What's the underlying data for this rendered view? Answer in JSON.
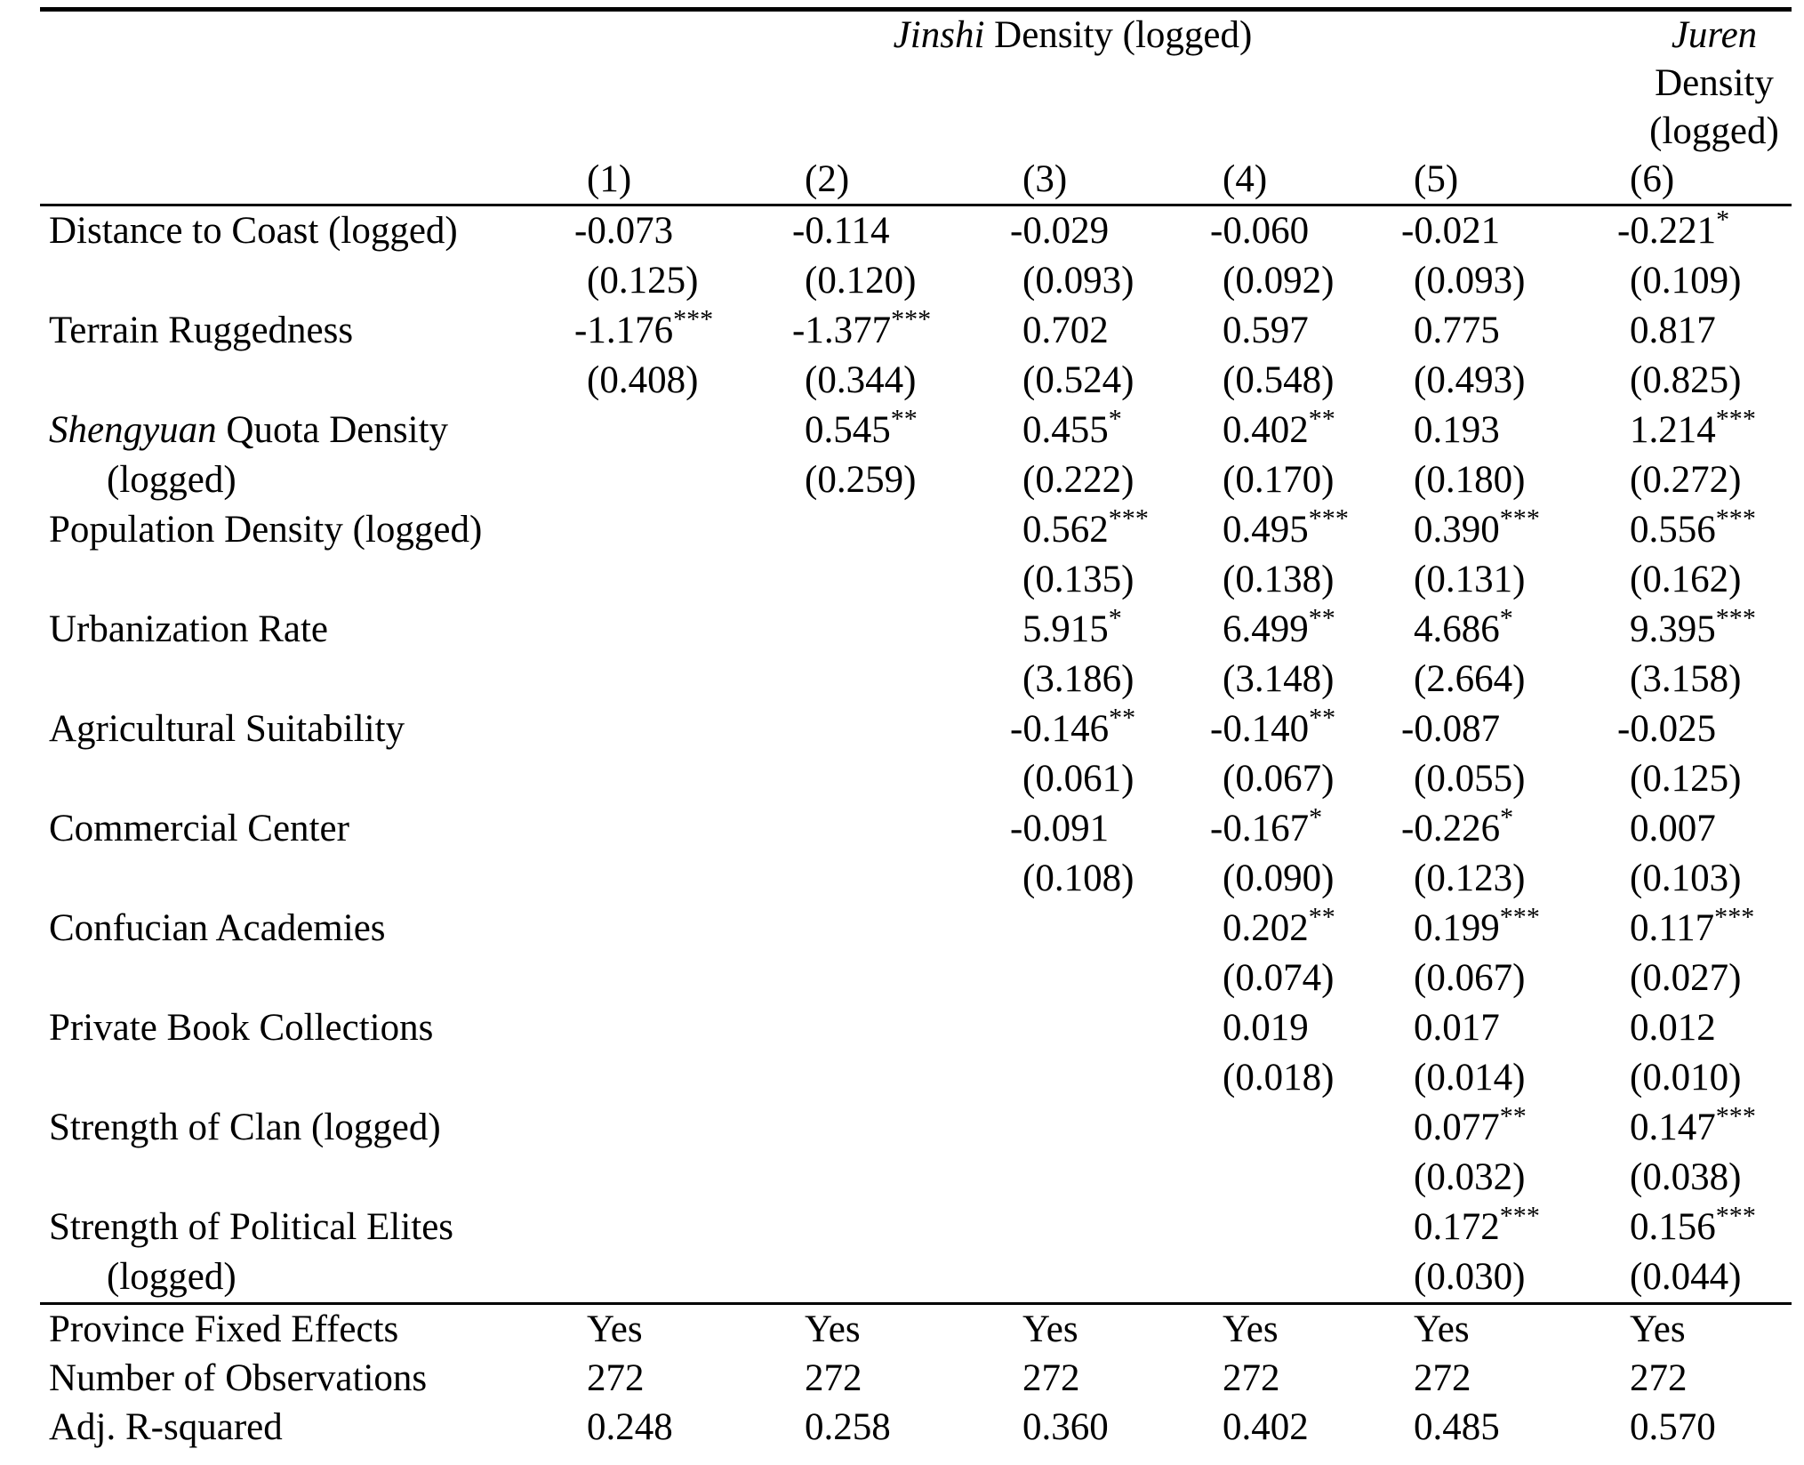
{
  "table": {
    "header": {
      "span_title_parts": [
        {
          "text": "Jinshi",
          "italic": true
        },
        {
          "text": " Density (logged)",
          "italic": false
        }
      ],
      "col6_title_lines": [
        {
          "text": "Juren",
          "italic": true
        },
        {
          "text": "Density",
          "italic": false
        },
        {
          "text": "(logged)",
          "italic": false
        }
      ],
      "column_numbers": [
        "(1)",
        "(2)",
        "(3)",
        "(4)",
        "(5)",
        "(6)"
      ]
    },
    "rows": [
      {
        "label_parts": [
          {
            "text": "Distance to Coast (logged)",
            "italic": false
          }
        ],
        "label2": "",
        "coefs": [
          "-0.073",
          "-0.114",
          "-0.029",
          "-0.060",
          "-0.021",
          "-0.221*"
        ],
        "ses": [
          "(0.125)",
          "(0.120)",
          "(0.093)",
          "(0.092)",
          "(0.093)",
          "(0.109)"
        ]
      },
      {
        "label_parts": [
          {
            "text": "Terrain Ruggedness",
            "italic": false
          }
        ],
        "label2": "",
        "coefs": [
          "-1.176***",
          "-1.377***",
          "0.702",
          "0.597",
          "0.775",
          "0.817"
        ],
        "ses": [
          "(0.408)",
          "(0.344)",
          "(0.524)",
          "(0.548)",
          "(0.493)",
          "(0.825)"
        ]
      },
      {
        "label_parts": [
          {
            "text": "Shengyuan",
            "italic": true
          },
          {
            "text": " Quota Density",
            "italic": false
          }
        ],
        "label2": "(logged)",
        "coefs": [
          "",
          "0.545**",
          "0.455*",
          "0.402**",
          "0.193",
          "1.214***"
        ],
        "ses": [
          "",
          "(0.259)",
          "(0.222)",
          "(0.170)",
          "(0.180)",
          "(0.272)"
        ]
      },
      {
        "label_parts": [
          {
            "text": "Population Density (logged)",
            "italic": false
          }
        ],
        "label2": "",
        "coefs": [
          "",
          "",
          "0.562***",
          "0.495***",
          "0.390***",
          "0.556***"
        ],
        "ses": [
          "",
          "",
          "(0.135)",
          "(0.138)",
          "(0.131)",
          "(0.162)"
        ]
      },
      {
        "label_parts": [
          {
            "text": "Urbanization Rate",
            "italic": false
          }
        ],
        "label2": "",
        "coefs": [
          "",
          "",
          "5.915*",
          "6.499**",
          "4.686*",
          "9.395***"
        ],
        "ses": [
          "",
          "",
          "(3.186)",
          "(3.148)",
          "(2.664)",
          "(3.158)"
        ]
      },
      {
        "label_parts": [
          {
            "text": "Agricultural Suitability",
            "italic": false
          }
        ],
        "label2": "",
        "coefs": [
          "",
          "",
          "-0.146**",
          "-0.140**",
          "-0.087",
          "-0.025"
        ],
        "ses": [
          "",
          "",
          "(0.061)",
          "(0.067)",
          "(0.055)",
          "(0.125)"
        ]
      },
      {
        "label_parts": [
          {
            "text": "Commercial Center",
            "italic": false
          }
        ],
        "label2": "",
        "coefs": [
          "",
          "",
          "-0.091",
          "-0.167*",
          "-0.226*",
          "0.007"
        ],
        "ses": [
          "",
          "",
          "(0.108)",
          "(0.090)",
          "(0.123)",
          "(0.103)"
        ]
      },
      {
        "label_parts": [
          {
            "text": "Confucian Academies",
            "italic": false
          }
        ],
        "label2": "",
        "coefs": [
          "",
          "",
          "",
          "0.202**",
          "0.199***",
          "0.117***"
        ],
        "ses": [
          "",
          "",
          "",
          "(0.074)",
          "(0.067)",
          "(0.027)"
        ]
      },
      {
        "label_parts": [
          {
            "text": "Private Book Collections",
            "italic": false
          }
        ],
        "label2": "",
        "coefs": [
          "",
          "",
          "",
          "0.019",
          "0.017",
          "0.012"
        ],
        "ses": [
          "",
          "",
          "",
          "(0.018)",
          "(0.014)",
          "(0.010)"
        ]
      },
      {
        "label_parts": [
          {
            "text": "Strength of Clan (logged)",
            "italic": false
          }
        ],
        "label2": "",
        "coefs": [
          "",
          "",
          "",
          "",
          "0.077**",
          "0.147***"
        ],
        "ses": [
          "",
          "",
          "",
          "",
          "(0.032)",
          "(0.038)"
        ]
      },
      {
        "label_parts": [
          {
            "text": "Strength of Political Elites",
            "italic": false
          }
        ],
        "label2": "(logged)",
        "coefs": [
          "",
          "",
          "",
          "",
          "0.172***",
          "0.156***"
        ],
        "ses": [
          "",
          "",
          "",
          "",
          "(0.030)",
          "(0.044)"
        ]
      }
    ],
    "footer_rows": [
      {
        "label": "Province Fixed Effects",
        "values": [
          "Yes",
          "Yes",
          "Yes",
          "Yes",
          "Yes",
          "Yes"
        ]
      },
      {
        "label": "Number of Observations",
        "values": [
          "272",
          "272",
          "272",
          "272",
          "272",
          "272"
        ]
      },
      {
        "label": "Adj. R-squared",
        "values": [
          "0.248",
          "0.258",
          "0.360",
          "0.402",
          "0.485",
          "0.570"
        ]
      }
    ]
  }
}
